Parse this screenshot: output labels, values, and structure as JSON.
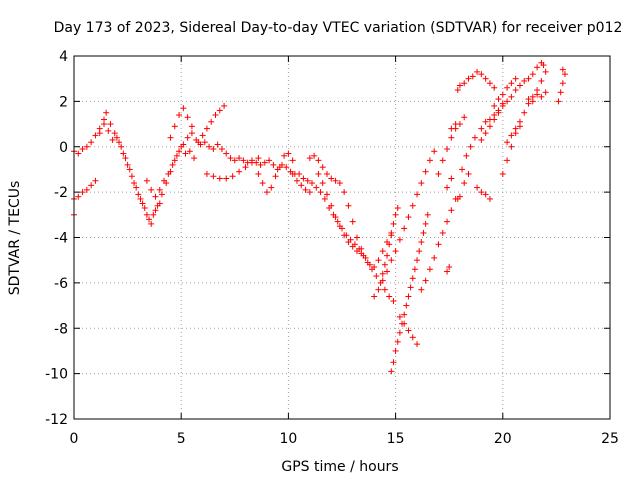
{
  "chart_data": {
    "type": "scatter",
    "title": "Day 173 of 2023, Sidereal Day-to-day VTEC variation (SDTVAR) for receiver p012",
    "xlabel": "GPS time / hours",
    "ylabel": "SDTVAR / TECUs",
    "xlim": [
      0,
      25
    ],
    "ylim": [
      -12,
      4
    ],
    "xticks": [
      "0",
      "5",
      "10",
      "15",
      "20",
      "25"
    ],
    "yticks": [
      "-12",
      "-10",
      "-8",
      "-6",
      "-4",
      "-2",
      "0",
      "2",
      "4"
    ],
    "grid": true,
    "marker": "plus",
    "color": "#ff0000",
    "series": [
      {
        "points": [
          [
            0.0,
            -0.2
          ],
          [
            0.2,
            -0.3
          ],
          [
            0.4,
            -0.1
          ],
          [
            0.6,
            0.0
          ],
          [
            0.8,
            0.2
          ],
          [
            1.0,
            0.5
          ],
          [
            1.2,
            0.8
          ],
          [
            1.4,
            1.2
          ],
          [
            1.5,
            1.5
          ],
          [
            1.7,
            1.0
          ],
          [
            1.9,
            0.6
          ],
          [
            2.1,
            0.2
          ],
          [
            2.3,
            -0.3
          ],
          [
            2.5,
            -0.8
          ],
          [
            2.7,
            -1.3
          ],
          [
            2.9,
            -1.8
          ],
          [
            3.1,
            -2.3
          ],
          [
            3.3,
            -2.7
          ],
          [
            3.5,
            -3.2
          ],
          [
            3.7,
            -3.0
          ],
          [
            3.9,
            -2.6
          ],
          [
            4.1,
            -2.1
          ],
          [
            4.3,
            -1.6
          ],
          [
            4.5,
            -1.1
          ],
          [
            4.7,
            -0.6
          ],
          [
            4.9,
            -0.2
          ],
          [
            5.1,
            0.1
          ],
          [
            5.3,
            0.4
          ],
          [
            5.5,
            0.6
          ],
          [
            5.7,
            0.3
          ],
          [
            5.9,
            0.1
          ],
          [
            6.1,
            0.2
          ],
          [
            6.3,
            0.0
          ],
          [
            6.5,
            -0.1
          ],
          [
            6.7,
            0.1
          ],
          [
            6.9,
            -0.1
          ],
          [
            7.1,
            -0.3
          ],
          [
            7.3,
            -0.5
          ],
          [
            7.5,
            -0.6
          ],
          [
            7.7,
            -0.5
          ],
          [
            7.9,
            -0.6
          ],
          [
            8.1,
            -0.7
          ],
          [
            8.3,
            -0.6
          ],
          [
            8.5,
            -0.7
          ],
          [
            8.7,
            -0.8
          ],
          [
            8.9,
            -0.7
          ],
          [
            9.1,
            -0.6
          ],
          [
            9.3,
            -0.8
          ],
          [
            9.5,
            -1.0
          ],
          [
            9.7,
            -0.8
          ],
          [
            9.9,
            -0.9
          ],
          [
            10.1,
            -1.1
          ],
          [
            10.3,
            -1.2
          ],
          [
            10.5,
            -1.2
          ],
          [
            10.7,
            -1.4
          ],
          [
            10.9,
            -1.5
          ],
          [
            11.1,
            -1.6
          ],
          [
            11.3,
            -1.8
          ],
          [
            11.5,
            -2.0
          ],
          [
            11.7,
            -2.3
          ],
          [
            11.9,
            -2.7
          ],
          [
            12.1,
            -3.0
          ],
          [
            12.3,
            -3.3
          ],
          [
            12.5,
            -3.6
          ],
          [
            12.7,
            -3.9
          ],
          [
            12.9,
            -4.1
          ],
          [
            13.1,
            -4.3
          ],
          [
            13.3,
            -4.5
          ],
          [
            13.5,
            -4.8
          ],
          [
            13.7,
            -5.1
          ],
          [
            13.9,
            -5.4
          ],
          [
            14.1,
            -5.7
          ],
          [
            14.3,
            -6.0
          ],
          [
            14.5,
            -6.3
          ],
          [
            14.7,
            -6.6
          ],
          [
            14.9,
            -6.8
          ]
        ]
      },
      {
        "points": [
          [
            0.0,
            -2.3
          ],
          [
            0.2,
            -2.2
          ],
          [
            0.4,
            -2.0
          ],
          [
            0.6,
            -1.9
          ],
          [
            0.8,
            -1.7
          ],
          [
            1.0,
            -1.5
          ],
          [
            0.0,
            -3.0
          ],
          [
            1.2,
            0.6
          ],
          [
            1.4,
            1.0
          ],
          [
            1.6,
            0.7
          ],
          [
            1.8,
            0.3
          ],
          [
            2.0,
            0.4
          ],
          [
            2.2,
            0.0
          ],
          [
            2.4,
            -0.5
          ],
          [
            2.6,
            -1.0
          ],
          [
            2.8,
            -1.6
          ],
          [
            3.0,
            -2.1
          ],
          [
            3.2,
            -2.5
          ],
          [
            3.4,
            -3.0
          ],
          [
            3.6,
            -3.4
          ],
          [
            3.8,
            -2.8
          ],
          [
            4.0,
            -2.5
          ],
          [
            3.4,
            -1.5
          ],
          [
            3.6,
            -1.9
          ],
          [
            3.8,
            -2.2
          ],
          [
            4.0,
            -1.9
          ],
          [
            4.2,
            -1.5
          ],
          [
            4.4,
            -1.2
          ],
          [
            4.6,
            -0.8
          ],
          [
            4.8,
            -0.4
          ],
          [
            5.0,
            0.0
          ],
          [
            5.2,
            -0.3
          ],
          [
            5.4,
            -0.2
          ],
          [
            5.6,
            -0.5
          ],
          [
            5.8,
            0.2
          ],
          [
            6.0,
            0.5
          ],
          [
            6.2,
            0.8
          ],
          [
            6.4,
            1.1
          ],
          [
            6.6,
            1.4
          ],
          [
            6.8,
            1.6
          ],
          [
            7.0,
            1.8
          ],
          [
            4.5,
            0.4
          ],
          [
            4.7,
            0.9
          ],
          [
            4.9,
            1.4
          ],
          [
            5.1,
            1.7
          ],
          [
            5.3,
            1.3
          ],
          [
            5.5,
            0.9
          ],
          [
            6.2,
            -1.2
          ],
          [
            6.5,
            -1.3
          ],
          [
            6.8,
            -1.4
          ],
          [
            7.1,
            -1.4
          ],
          [
            7.4,
            -1.3
          ],
          [
            7.7,
            -1.1
          ],
          [
            8.0,
            -0.9
          ],
          [
            8.3,
            -0.7
          ],
          [
            8.6,
            -0.5
          ],
          [
            8.6,
            -1.2
          ],
          [
            8.8,
            -1.6
          ],
          [
            9.0,
            -2.0
          ],
          [
            9.2,
            -1.8
          ],
          [
            9.4,
            -1.3
          ],
          [
            9.6,
            -0.9
          ],
          [
            9.8,
            -0.4
          ],
          [
            10.0,
            -0.3
          ],
          [
            10.2,
            -0.6
          ],
          [
            10.2,
            -1.2
          ],
          [
            10.4,
            -1.5
          ],
          [
            10.6,
            -1.7
          ],
          [
            10.8,
            -1.9
          ],
          [
            11.0,
            -2.0
          ],
          [
            11.0,
            -0.5
          ],
          [
            11.2,
            -0.4
          ],
          [
            11.4,
            -0.6
          ],
          [
            11.6,
            -0.9
          ],
          [
            11.8,
            -1.2
          ],
          [
            12.0,
            -1.4
          ],
          [
            12.2,
            -1.5
          ],
          [
            12.4,
            -1.6
          ],
          [
            12.6,
            -2.0
          ],
          [
            12.8,
            -2.6
          ],
          [
            13.0,
            -3.3
          ],
          [
            13.2,
            -4.0
          ],
          [
            13.4,
            -4.5
          ],
          [
            13.6,
            -4.9
          ],
          [
            13.8,
            -5.2
          ],
          [
            14.0,
            -5.3
          ],
          [
            14.2,
            -5.0
          ],
          [
            14.4,
            -4.6
          ],
          [
            14.6,
            -4.2
          ],
          [
            14.8,
            -3.8
          ],
          [
            11.4,
            -1.2
          ],
          [
            11.6,
            -1.6
          ],
          [
            11.8,
            -2.1
          ],
          [
            12.0,
            -2.6
          ],
          [
            12.2,
            -3.1
          ],
          [
            12.4,
            -3.5
          ],
          [
            12.6,
            -3.9
          ],
          [
            12.8,
            -4.2
          ],
          [
            13.0,
            -4.4
          ],
          [
            13.2,
            -4.6
          ],
          [
            13.4,
            -4.7
          ]
        ]
      },
      {
        "points": [
          [
            14.8,
            -9.9
          ],
          [
            14.9,
            -9.5
          ],
          [
            15.0,
            -9.0
          ],
          [
            15.1,
            -8.6
          ],
          [
            15.2,
            -8.2
          ],
          [
            15.3,
            -7.8
          ],
          [
            15.4,
            -7.4
          ],
          [
            15.5,
            -7.0
          ],
          [
            15.6,
            -6.6
          ],
          [
            15.7,
            -6.2
          ],
          [
            15.8,
            -5.8
          ],
          [
            15.9,
            -5.4
          ],
          [
            16.0,
            -5.0
          ],
          [
            16.1,
            -4.6
          ],
          [
            16.2,
            -4.2
          ],
          [
            16.3,
            -3.8
          ],
          [
            16.4,
            -3.4
          ],
          [
            16.5,
            -3.0
          ],
          [
            14.4,
            -5.6
          ],
          [
            14.5,
            -5.2
          ],
          [
            14.6,
            -4.8
          ],
          [
            14.7,
            -4.3
          ],
          [
            14.8,
            -3.9
          ],
          [
            14.9,
            -3.4
          ],
          [
            15.0,
            -3.0
          ],
          [
            15.1,
            -2.7
          ],
          [
            14.0,
            -6.6
          ],
          [
            14.2,
            -6.3
          ],
          [
            14.4,
            -5.9
          ],
          [
            14.6,
            -5.5
          ],
          [
            14.8,
            -5.0
          ],
          [
            15.0,
            -4.6
          ],
          [
            15.2,
            -4.1
          ],
          [
            15.4,
            -3.6
          ],
          [
            15.6,
            -3.1
          ],
          [
            15.8,
            -2.6
          ],
          [
            16.0,
            -2.1
          ],
          [
            16.2,
            -1.6
          ],
          [
            16.4,
            -1.1
          ],
          [
            16.6,
            -0.6
          ],
          [
            16.8,
            -0.2
          ],
          [
            15.2,
            -7.5
          ],
          [
            15.4,
            -7.8
          ],
          [
            15.6,
            -8.1
          ],
          [
            15.8,
            -8.4
          ],
          [
            16.0,
            -8.7
          ],
          [
            16.2,
            -6.3
          ],
          [
            16.4,
            -5.9
          ],
          [
            16.6,
            -5.4
          ],
          [
            16.8,
            -4.9
          ],
          [
            17.0,
            -4.3
          ],
          [
            17.2,
            -3.8
          ],
          [
            17.4,
            -3.3
          ],
          [
            17.6,
            -2.8
          ],
          [
            17.8,
            -2.3
          ],
          [
            17.4,
            -5.5
          ],
          [
            17.5,
            -5.3
          ],
          [
            17.0,
            -1.2
          ],
          [
            17.2,
            -0.6
          ],
          [
            17.4,
            -0.1
          ],
          [
            17.6,
            0.4
          ],
          [
            17.8,
            0.8
          ],
          [
            17.4,
            -1.8
          ],
          [
            17.6,
            -1.4
          ],
          [
            18.0,
            -2.2
          ],
          [
            18.2,
            -1.6
          ],
          [
            18.4,
            -1.2
          ],
          [
            17.6,
            0.8
          ],
          [
            17.8,
            1.0
          ],
          [
            17.9,
            -2.3
          ],
          [
            18.1,
            -1.0
          ],
          [
            18.3,
            -0.4
          ],
          [
            18.5,
            0.0
          ],
          [
            18.7,
            0.4
          ],
          [
            18.0,
            1.0
          ],
          [
            18.2,
            1.3
          ],
          [
            17.9,
            2.5
          ],
          [
            18.0,
            2.7
          ],
          [
            18.2,
            2.8
          ],
          [
            18.4,
            3.0
          ],
          [
            18.6,
            3.1
          ],
          [
            18.8,
            3.3
          ],
          [
            19.0,
            3.2
          ],
          [
            19.2,
            3.0
          ],
          [
            19.4,
            2.8
          ],
          [
            19.6,
            2.6
          ],
          [
            18.8,
            -1.8
          ],
          [
            19.0,
            -2.0
          ],
          [
            19.2,
            -2.1
          ],
          [
            19.4,
            -2.3
          ],
          [
            19.0,
            0.8
          ],
          [
            19.2,
            1.1
          ],
          [
            19.4,
            1.2
          ],
          [
            19.6,
            1.4
          ],
          [
            19.8,
            1.5
          ],
          [
            20.0,
            1.8
          ],
          [
            20.2,
            2.0
          ],
          [
            20.4,
            2.2
          ],
          [
            20.6,
            2.5
          ],
          [
            20.8,
            2.7
          ],
          [
            21.0,
            2.9
          ],
          [
            21.2,
            3.0
          ],
          [
            21.4,
            3.2
          ],
          [
            21.6,
            3.5
          ],
          [
            21.8,
            3.7
          ],
          [
            21.9,
            3.6
          ],
          [
            19.0,
            0.3
          ],
          [
            19.2,
            0.6
          ],
          [
            19.4,
            0.9
          ],
          [
            19.6,
            1.2
          ],
          [
            19.8,
            1.6
          ],
          [
            20.0,
            1.9
          ],
          [
            19.6,
            1.8
          ],
          [
            19.8,
            2.1
          ],
          [
            20.0,
            2.3
          ],
          [
            20.2,
            2.6
          ],
          [
            20.4,
            2.8
          ],
          [
            20.6,
            3.0
          ],
          [
            20.0,
            -1.2
          ],
          [
            20.2,
            -0.6
          ],
          [
            20.4,
            0.0
          ],
          [
            20.6,
            0.6
          ],
          [
            20.8,
            1.1
          ],
          [
            21.0,
            1.5
          ],
          [
            21.2,
            1.9
          ],
          [
            21.4,
            2.2
          ],
          [
            21.6,
            2.5
          ],
          [
            21.8,
            2.9
          ],
          [
            22.0,
            3.3
          ],
          [
            20.2,
            0.2
          ],
          [
            20.4,
            0.5
          ],
          [
            20.6,
            0.8
          ],
          [
            20.8,
            0.9
          ],
          [
            21.2,
            2.1
          ],
          [
            21.4,
            2.0
          ],
          [
            21.6,
            2.3
          ],
          [
            21.8,
            2.2
          ],
          [
            22.0,
            2.4
          ],
          [
            22.6,
            2.0
          ],
          [
            22.7,
            2.4
          ],
          [
            22.8,
            2.8
          ],
          [
            22.9,
            3.2
          ],
          [
            22.8,
            3.4
          ]
        ]
      }
    ]
  }
}
